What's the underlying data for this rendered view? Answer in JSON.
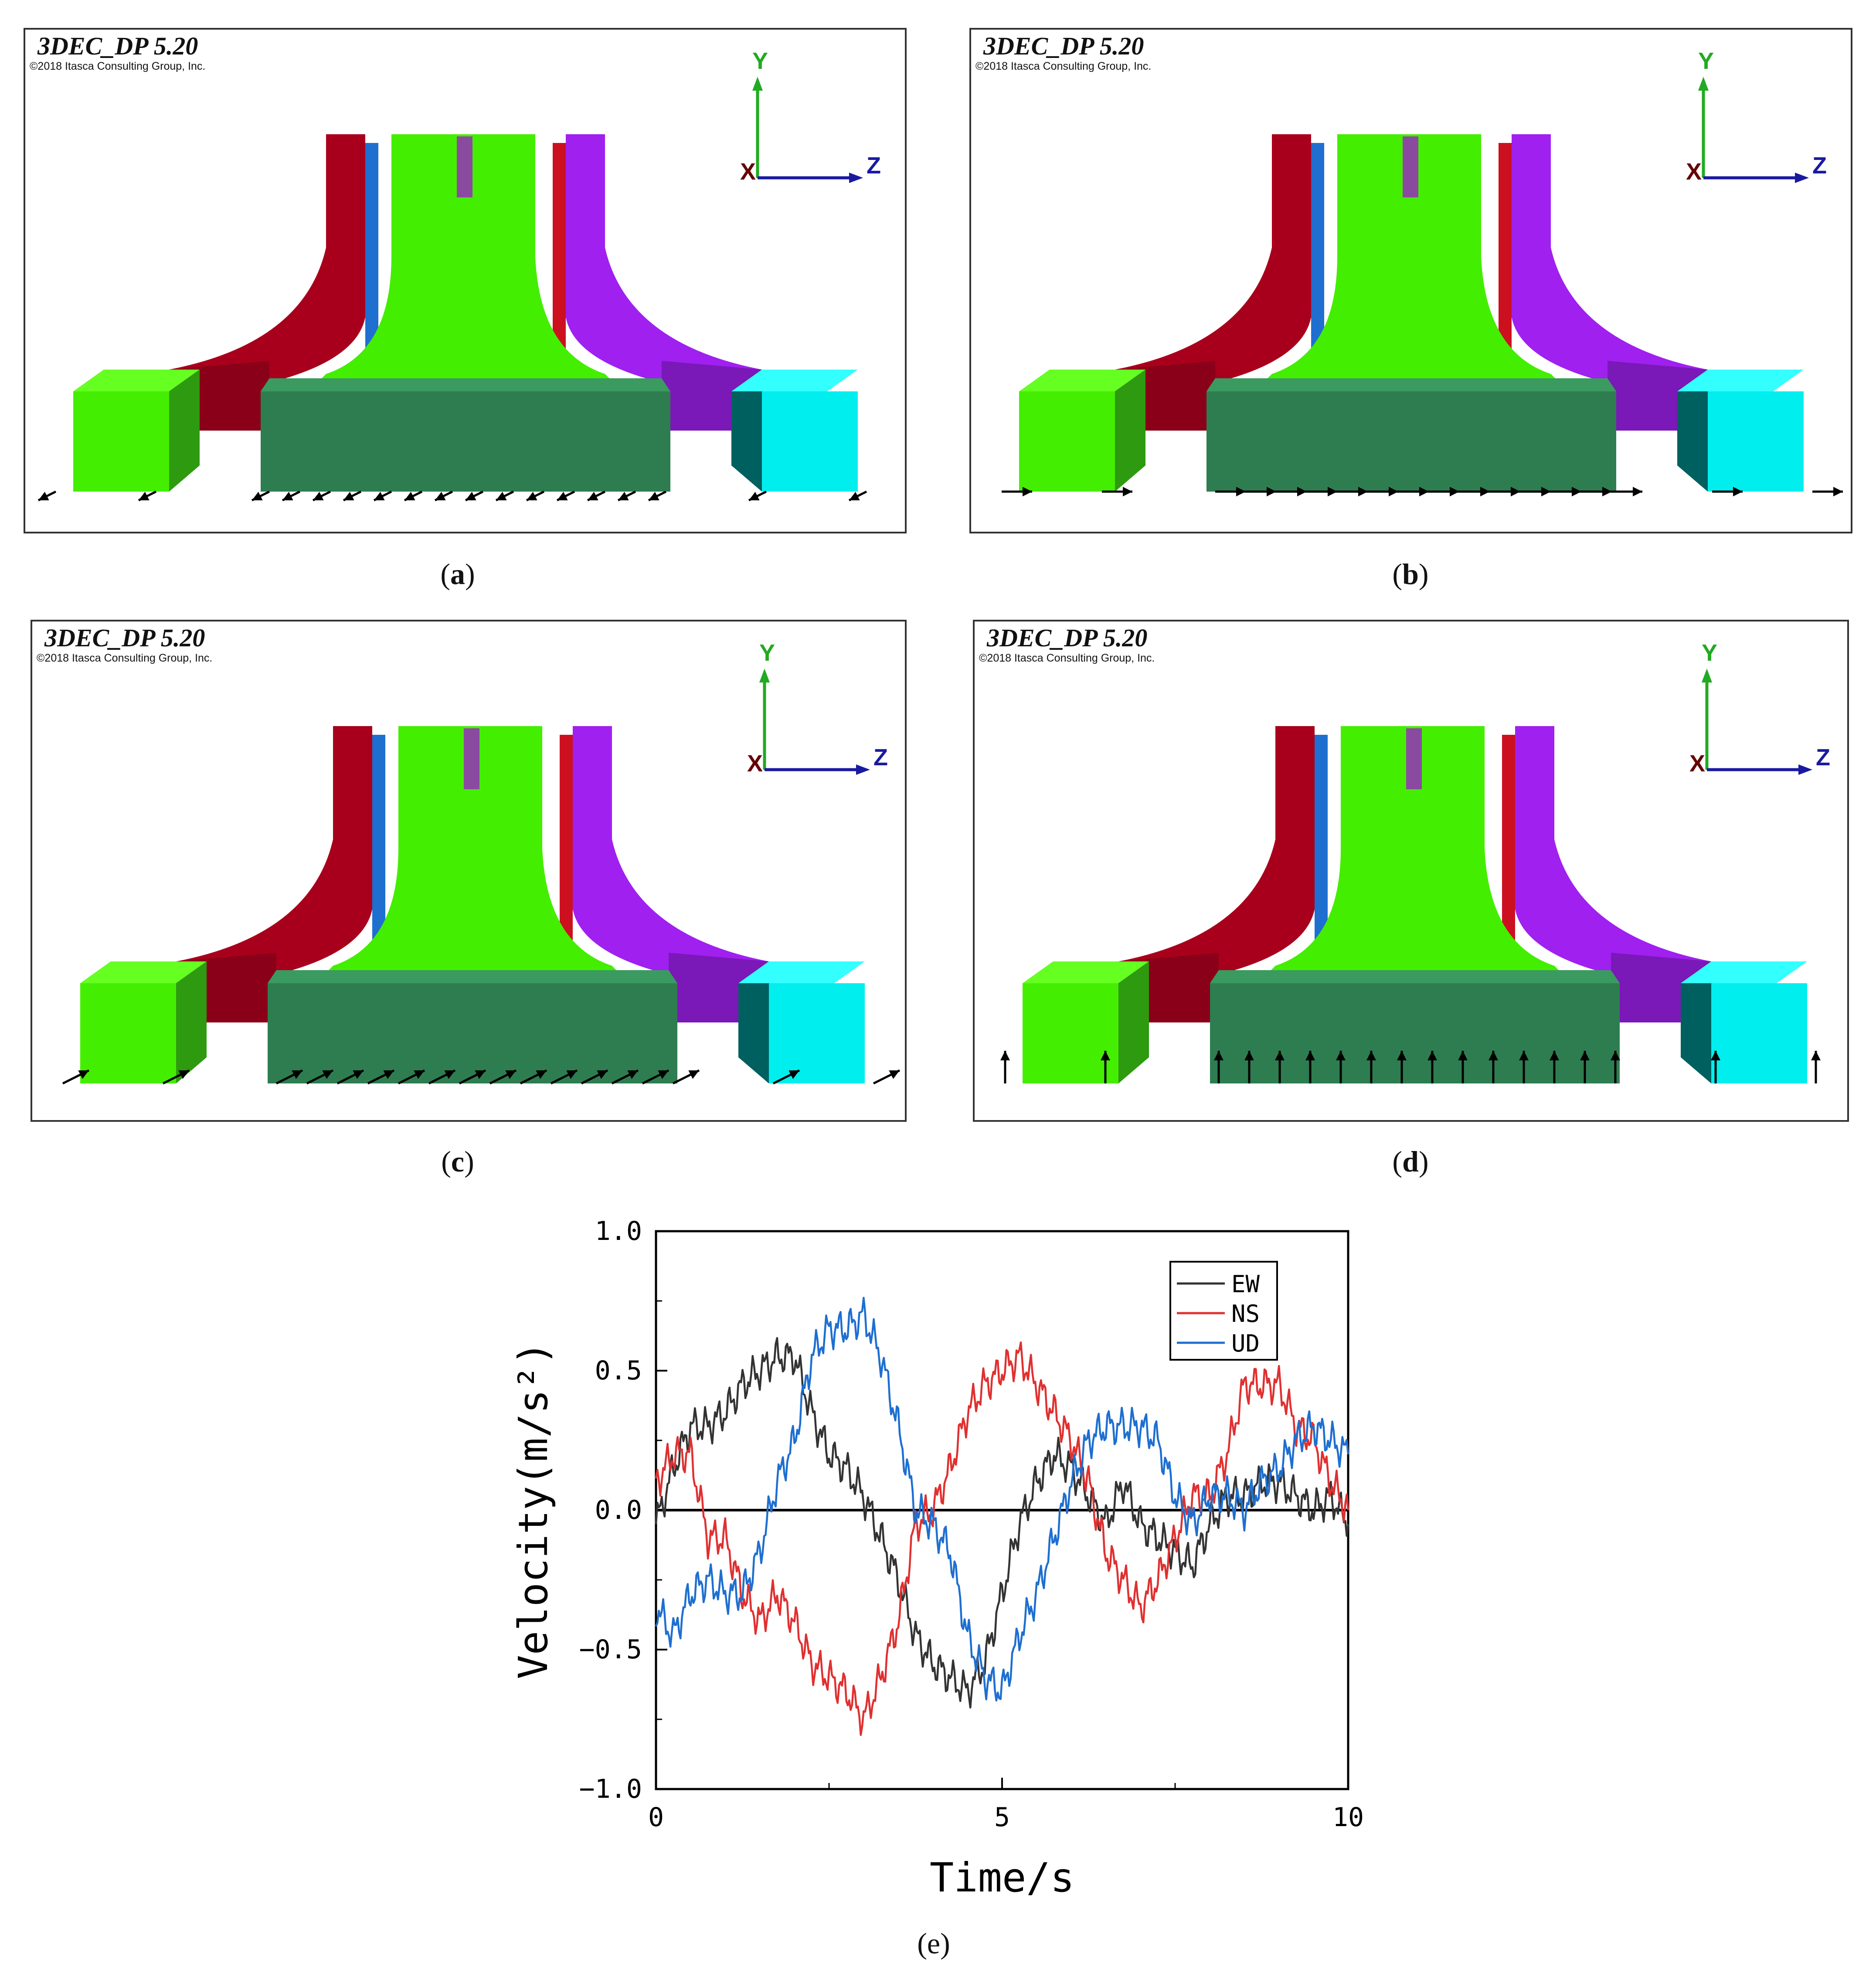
{
  "panels": [
    {
      "id": "a",
      "title": "3DEC_DP 5.20",
      "copyright": "©2018 Itasca Consulting Group, Inc.",
      "caption": "a",
      "arrow_dir": "left-down"
    },
    {
      "id": "b",
      "title": "3DEC_DP 5.20",
      "copyright": "©2018 Itasca Consulting Group, Inc.",
      "caption": "b",
      "arrow_dir": "right"
    },
    {
      "id": "c",
      "title": "3DEC_DP 5.20",
      "copyright": "©2018 Itasca Consulting Group, Inc.",
      "caption": "c",
      "arrow_dir": "right-up"
    },
    {
      "id": "d",
      "title": "3DEC_DP 5.20",
      "copyright": "©2018 Itasca Consulting Group, Inc.",
      "caption": "d",
      "arrow_dir": "up"
    }
  ],
  "axes_labels": {
    "y": "Y",
    "x": "X",
    "z": "Z"
  },
  "colors": {
    "axis_y": "#22aa22",
    "axis_z": "#1a1aa0",
    "axis_x": "#660000",
    "red": "#a8001c",
    "purple": "#a020f0",
    "green": "#44ee00",
    "dark_green": "#2e7d50",
    "cyan": "#00eeee",
    "blue": "#1e6fd0"
  },
  "chart_caption": "(e)",
  "chart_data": {
    "type": "line",
    "title": "",
    "xlabel": "Time/s",
    "ylabel": "Velocity(m/s²)",
    "xlim": [
      0,
      10
    ],
    "ylim": [
      -1.0,
      1.0
    ],
    "xticks": [
      "0",
      "5",
      "10"
    ],
    "yticks": [
      "1.0",
      "0.5",
      "0.0",
      "−0.5",
      "−1.0"
    ],
    "legend": "top-right",
    "x": [
      0,
      0.25,
      0.5,
      0.75,
      1.0,
      1.25,
      1.5,
      1.75,
      2.0,
      2.25,
      2.5,
      2.75,
      3.0,
      3.25,
      3.5,
      3.75,
      4.0,
      4.25,
      4.5,
      4.75,
      5.0,
      5.25,
      5.5,
      5.75,
      6.0,
      6.25,
      6.5,
      6.75,
      7.0,
      7.25,
      7.5,
      7.75,
      8.0,
      8.25,
      8.5,
      8.75,
      9.0,
      9.25,
      9.5,
      9.75,
      10.0
    ],
    "series": [
      {
        "name": "EW",
        "color": "#333333",
        "values": [
          -0.05,
          0.15,
          0.3,
          0.3,
          0.35,
          0.45,
          0.5,
          0.55,
          0.55,
          0.35,
          0.2,
          0.15,
          0.05,
          -0.1,
          -0.25,
          -0.45,
          -0.55,
          -0.6,
          -0.65,
          -0.55,
          -0.3,
          -0.05,
          0.1,
          0.2,
          0.15,
          0.05,
          -0.05,
          0.1,
          -0.05,
          -0.1,
          -0.15,
          -0.2,
          -0.05,
          0.05,
          0.05,
          0.1,
          0.1,
          0.05,
          0.0,
          0.05,
          -0.05
        ]
      },
      {
        "name": "NS",
        "color": "#e03030",
        "values": [
          0.1,
          0.2,
          0.2,
          -0.1,
          -0.1,
          -0.3,
          -0.4,
          -0.3,
          -0.4,
          -0.55,
          -0.6,
          -0.65,
          -0.75,
          -0.6,
          -0.4,
          -0.05,
          0.0,
          0.15,
          0.35,
          0.45,
          0.5,
          0.55,
          0.45,
          0.35,
          0.25,
          0.1,
          -0.15,
          -0.25,
          -0.35,
          -0.25,
          -0.1,
          0.05,
          0.05,
          0.2,
          0.45,
          0.45,
          0.45,
          0.3,
          0.25,
          0.1,
          0.0
        ]
      },
      {
        "name": "UD",
        "color": "#1e6fd0",
        "values": [
          -0.35,
          -0.45,
          -0.3,
          -0.25,
          -0.3,
          -0.3,
          -0.15,
          0.1,
          0.25,
          0.55,
          0.65,
          0.65,
          0.7,
          0.55,
          0.3,
          0.0,
          -0.05,
          -0.15,
          -0.45,
          -0.6,
          -0.65,
          -0.45,
          -0.3,
          -0.1,
          0.1,
          0.25,
          0.3,
          0.3,
          0.3,
          0.25,
          0.05,
          -0.05,
          0.05,
          0.05,
          0.0,
          0.1,
          0.15,
          0.25,
          0.3,
          0.25,
          0.2
        ]
      }
    ],
    "zero_line": true
  }
}
